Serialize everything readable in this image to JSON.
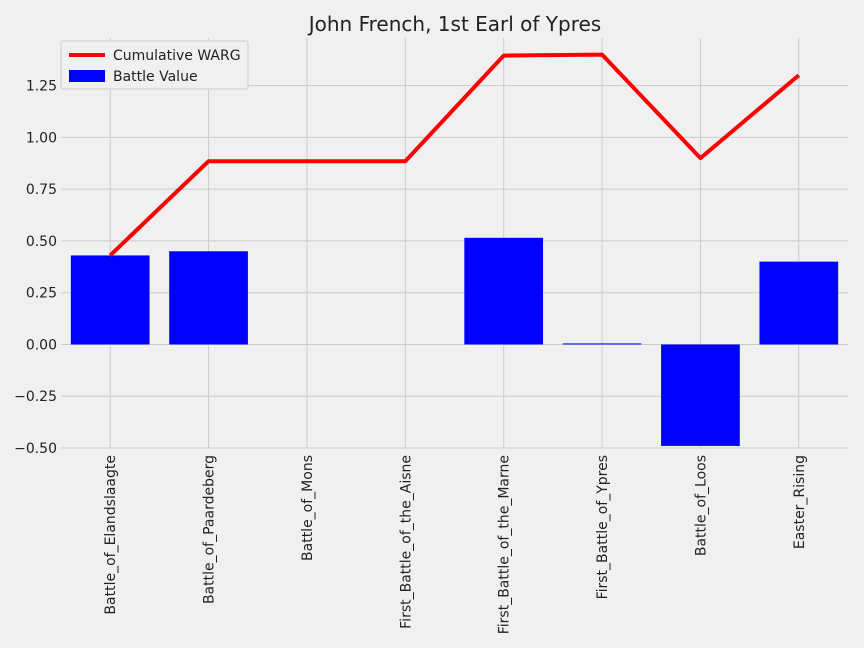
{
  "chart_data": {
    "type": "bar",
    "title": "John French, 1st Earl of Ypres",
    "xlabel": "",
    "ylabel": "",
    "categories": [
      "Battle_of_Elandslaagte",
      "Battle_of_Paardeberg",
      "Battle_of_Mons",
      "First_Battle_of_the_Aisne",
      "First_Battle_of_the_Marne",
      "First_Battle_of_Ypres",
      "Battle_of_Loos",
      "Easter_Rising"
    ],
    "series": [
      {
        "name": "Battle Value",
        "type": "bar",
        "color": "#0000ff",
        "values": [
          0.43,
          0.45,
          0.0,
          0.0,
          0.515,
          0.005,
          -0.49,
          0.4
        ]
      },
      {
        "name": "Cumulative WARG",
        "type": "line",
        "color": "#ff0000",
        "values": [
          0.43,
          0.885,
          0.885,
          0.885,
          1.395,
          1.4,
          0.9,
          1.3
        ]
      }
    ],
    "ylim": [
      -0.5,
      1.48
    ],
    "yticks": [
      -0.5,
      -0.25,
      0.0,
      0.25,
      0.5,
      0.75,
      1.0,
      1.25
    ],
    "ytick_labels": [
      "−0.50",
      "−0.25",
      "0.00",
      "0.25",
      "0.50",
      "0.75",
      "1.00",
      "1.25"
    ],
    "grid": true,
    "legend": "top-left",
    "legend_order": [
      "Cumulative WARG",
      "Battle Value"
    ]
  }
}
